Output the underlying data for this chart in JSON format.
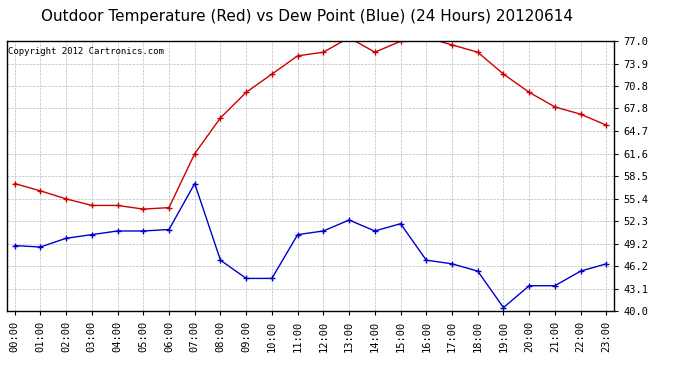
{
  "title": "Outdoor Temperature (Red) vs Dew Point (Blue) (24 Hours) 20120614",
  "copyright": "Copyright 2012 Cartronics.com",
  "hours": [
    0,
    1,
    2,
    3,
    4,
    5,
    6,
    7,
    8,
    9,
    10,
    11,
    12,
    13,
    14,
    15,
    16,
    17,
    18,
    19,
    20,
    21,
    22,
    23
  ],
  "temp": [
    57.5,
    56.5,
    55.4,
    54.5,
    54.5,
    54.0,
    54.2,
    61.6,
    66.5,
    70.0,
    72.5,
    75.0,
    75.5,
    77.5,
    75.5,
    77.0,
    77.5,
    76.5,
    75.5,
    72.5,
    70.0,
    68.0,
    67.0,
    65.5
  ],
  "dew": [
    49.0,
    48.8,
    50.0,
    50.5,
    51.0,
    51.0,
    51.2,
    57.5,
    47.0,
    44.5,
    44.5,
    50.5,
    51.0,
    52.5,
    51.0,
    52.0,
    47.0,
    46.5,
    45.5,
    40.5,
    43.5,
    43.5,
    45.5,
    46.5
  ],
  "temp_color": "#cc0000",
  "dew_color": "#0000cc",
  "bg_color": "#ffffff",
  "grid_color": "#bbbbbb",
  "ylim": [
    40.0,
    77.0
  ],
  "yticks": [
    40.0,
    43.1,
    46.2,
    49.2,
    52.3,
    55.4,
    58.5,
    61.6,
    64.7,
    67.8,
    70.8,
    73.9,
    77.0
  ],
  "title_fontsize": 11,
  "copyright_fontsize": 6.5,
  "tick_fontsize": 7.5
}
